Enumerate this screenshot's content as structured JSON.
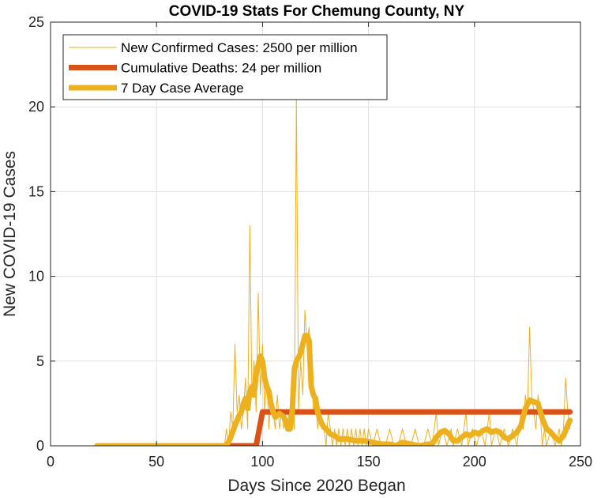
{
  "chart_data": {
    "type": "line",
    "title": "COVID-19 Stats For Chemung County, NY",
    "xlabel": "Days Since 2020 Began",
    "ylabel": "New COVID-19 Cases",
    "xlim": [
      0,
      250
    ],
    "ylim": [
      0,
      25
    ],
    "xticks": [
      0,
      50,
      100,
      150,
      200,
      250
    ],
    "yticks": [
      0,
      5,
      10,
      15,
      20,
      25
    ],
    "grid": true,
    "legend_position": "top-left",
    "series": [
      {
        "name": "New Confirmed Cases: 2500 per million",
        "color": "#EDB120",
        "style": "thin",
        "points": [
          [
            22,
            0
          ],
          [
            30,
            0
          ],
          [
            40,
            0
          ],
          [
            50,
            0
          ],
          [
            60,
            0
          ],
          [
            70,
            0
          ],
          [
            80,
            0
          ],
          [
            82,
            0
          ],
          [
            83,
            1
          ],
          [
            84,
            0
          ],
          [
            85,
            2
          ],
          [
            86,
            1
          ],
          [
            87,
            6
          ],
          [
            88,
            2
          ],
          [
            89,
            3
          ],
          [
            90,
            1
          ],
          [
            91,
            2
          ],
          [
            92,
            4
          ],
          [
            93,
            1
          ],
          [
            94,
            13
          ],
          [
            95,
            3
          ],
          [
            96,
            5
          ],
          [
            97,
            2
          ],
          [
            98,
            9
          ],
          [
            99,
            3
          ],
          [
            100,
            6
          ],
          [
            101,
            2
          ],
          [
            102,
            4
          ],
          [
            103,
            1
          ],
          [
            104,
            3
          ],
          [
            105,
            2
          ],
          [
            106,
            1
          ],
          [
            107,
            3
          ],
          [
            108,
            1
          ],
          [
            109,
            2
          ],
          [
            110,
            1
          ],
          [
            111,
            2
          ],
          [
            112,
            2
          ],
          [
            113,
            1
          ],
          [
            114,
            3
          ],
          [
            115,
            1
          ],
          [
            116,
            20.5
          ],
          [
            117,
            2
          ],
          [
            118,
            5
          ],
          [
            119,
            3
          ],
          [
            120,
            8
          ],
          [
            121,
            6
          ],
          [
            122,
            7
          ],
          [
            123,
            5
          ],
          [
            124,
            2
          ],
          [
            125,
            3
          ],
          [
            126,
            1
          ],
          [
            127,
            2
          ],
          [
            128,
            1
          ],
          [
            129,
            1
          ],
          [
            130,
            0
          ],
          [
            131,
            2
          ],
          [
            132,
            1
          ],
          [
            133,
            0
          ],
          [
            134,
            1
          ],
          [
            135,
            0
          ],
          [
            136,
            1
          ],
          [
            137,
            0
          ],
          [
            138,
            1
          ],
          [
            139,
            0
          ],
          [
            140,
            1
          ],
          [
            141,
            0
          ],
          [
            142,
            1
          ],
          [
            143,
            0
          ],
          [
            144,
            1
          ],
          [
            145,
            0
          ],
          [
            146,
            1
          ],
          [
            147,
            0
          ],
          [
            148,
            1
          ],
          [
            149,
            0
          ],
          [
            150,
            1
          ],
          [
            152,
            0
          ],
          [
            154,
            1
          ],
          [
            156,
            0
          ],
          [
            158,
            0
          ],
          [
            160,
            1
          ],
          [
            162,
            0
          ],
          [
            164,
            0
          ],
          [
            166,
            1
          ],
          [
            168,
            0
          ],
          [
            170,
            0
          ],
          [
            172,
            1
          ],
          [
            174,
            0
          ],
          [
            176,
            0
          ],
          [
            178,
            1
          ],
          [
            180,
            0
          ],
          [
            182,
            2
          ],
          [
            183,
            0
          ],
          [
            185,
            1
          ],
          [
            187,
            0
          ],
          [
            189,
            1
          ],
          [
            190,
            0
          ],
          [
            192,
            1
          ],
          [
            194,
            0
          ],
          [
            196,
            2
          ],
          [
            197,
            0
          ],
          [
            199,
            1
          ],
          [
            201,
            0
          ],
          [
            203,
            1
          ],
          [
            205,
            0
          ],
          [
            207,
            2
          ],
          [
            208,
            0
          ],
          [
            210,
            1
          ],
          [
            212,
            0
          ],
          [
            214,
            1
          ],
          [
            216,
            0
          ],
          [
            218,
            1
          ],
          [
            220,
            0
          ],
          [
            222,
            2
          ],
          [
            223,
            1
          ],
          [
            224,
            3
          ],
          [
            225,
            2
          ],
          [
            226,
            7
          ],
          [
            227,
            3
          ],
          [
            228,
            2
          ],
          [
            229,
            1
          ],
          [
            230,
            3
          ],
          [
            231,
            2
          ],
          [
            232,
            0
          ],
          [
            233,
            1
          ],
          [
            234,
            0
          ],
          [
            236,
            1
          ],
          [
            238,
            0
          ],
          [
            240,
            1
          ],
          [
            241,
            0
          ],
          [
            242,
            1
          ],
          [
            243,
            4
          ],
          [
            244,
            2
          ],
          [
            245,
            1
          ]
        ]
      },
      {
        "name": "Cumulative Deaths: 24 per million",
        "color": "#D95319",
        "style": "thick",
        "points": [
          [
            22,
            0
          ],
          [
            97,
            0
          ],
          [
            100,
            2
          ],
          [
            245,
            2
          ]
        ]
      },
      {
        "name": "7 Day Case Average",
        "color": "#EDB120",
        "style": "thick",
        "points": [
          [
            22,
            0
          ],
          [
            30,
            0
          ],
          [
            40,
            0
          ],
          [
            50,
            0
          ],
          [
            60,
            0
          ],
          [
            70,
            0
          ],
          [
            80,
            0
          ],
          [
            83,
            0
          ],
          [
            85,
            0.5
          ],
          [
            87,
            1.2
          ],
          [
            89,
            1.8
          ],
          [
            90,
            2.0
          ],
          [
            91,
            2.5
          ],
          [
            92,
            2.8
          ],
          [
            93,
            2.2
          ],
          [
            94,
            3.2
          ],
          [
            95,
            3.5
          ],
          [
            96,
            3.0
          ],
          [
            97,
            4.2
          ],
          [
            98,
            4.8
          ],
          [
            99,
            5.3
          ],
          [
            100,
            5.0
          ],
          [
            101,
            4.0
          ],
          [
            102,
            3.5
          ],
          [
            103,
            3.2
          ],
          [
            104,
            2.5
          ],
          [
            105,
            2.0
          ],
          [
            106,
            1.7
          ],
          [
            107,
            1.8
          ],
          [
            108,
            1.9
          ],
          [
            109,
            1.8
          ],
          [
            110,
            1.7
          ],
          [
            111,
            1.5
          ],
          [
            112,
            1.0
          ],
          [
            113,
            1.0
          ],
          [
            114,
            2.0
          ],
          [
            115,
            4.5
          ],
          [
            116,
            5.0
          ],
          [
            117,
            5.2
          ],
          [
            118,
            5.5
          ],
          [
            119,
            6.0
          ],
          [
            120,
            6.5
          ],
          [
            121,
            6.5
          ],
          [
            122,
            6.2
          ],
          [
            123,
            3.5
          ],
          [
            124,
            3.0
          ],
          [
            125,
            2.8
          ],
          [
            126,
            2.0
          ],
          [
            127,
            1.6
          ],
          [
            128,
            1.3
          ],
          [
            129,
            1.1
          ],
          [
            130,
            1.0
          ],
          [
            132,
            0.7
          ],
          [
            134,
            0.6
          ],
          [
            136,
            0.4
          ],
          [
            140,
            0.4
          ],
          [
            144,
            0.3
          ],
          [
            148,
            0.3
          ],
          [
            152,
            0.2
          ],
          [
            156,
            0.1
          ],
          [
            160,
            0.1
          ],
          [
            163,
            0
          ],
          [
            166,
            0.2
          ],
          [
            170,
            0.1
          ],
          [
            174,
            0
          ],
          [
            178,
            0.1
          ],
          [
            180,
            0.1
          ],
          [
            182,
            0.5
          ],
          [
            184,
            0.8
          ],
          [
            186,
            0.9
          ],
          [
            188,
            0.7
          ],
          [
            190,
            0.3
          ],
          [
            192,
            0.3
          ],
          [
            194,
            0.5
          ],
          [
            196,
            0.7
          ],
          [
            198,
            0.6
          ],
          [
            200,
            0.8
          ],
          [
            202,
            0.7
          ],
          [
            204,
            0.9
          ],
          [
            206,
            1.0
          ],
          [
            208,
            0.8
          ],
          [
            210,
            0.9
          ],
          [
            212,
            0.8
          ],
          [
            214,
            0.5
          ],
          [
            216,
            0.4
          ],
          [
            218,
            0.6
          ],
          [
            220,
            0.8
          ],
          [
            222,
            1.2
          ],
          [
            224,
            2.2
          ],
          [
            226,
            2.7
          ],
          [
            228,
            2.6
          ],
          [
            230,
            2.5
          ],
          [
            232,
            1.6
          ],
          [
            234,
            1.0
          ],
          [
            236,
            0.8
          ],
          [
            238,
            0.5
          ],
          [
            240,
            0.3
          ],
          [
            242,
            0.6
          ],
          [
            244,
            1.2
          ],
          [
            245,
            1.5
          ]
        ]
      }
    ]
  }
}
